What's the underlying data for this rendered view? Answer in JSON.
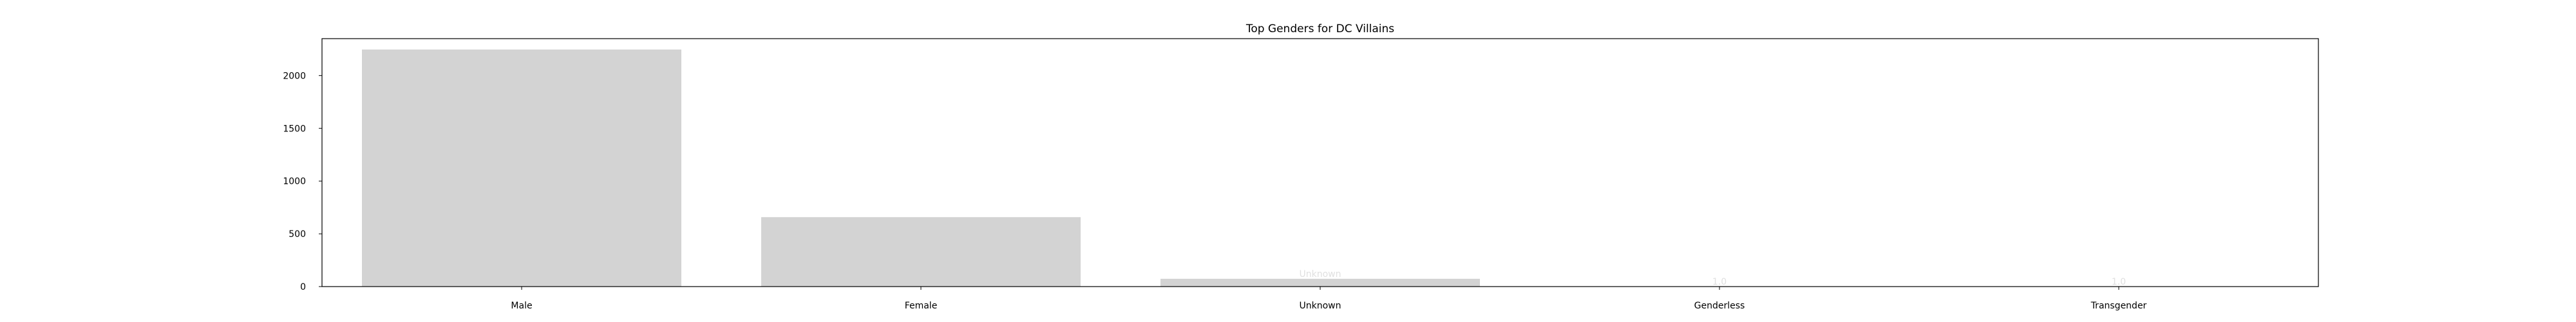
{
  "chart_data": {
    "type": "bar",
    "title": "Top Genders for DC Villains",
    "categories": [
      "Male",
      "Female",
      "Unknown",
      "Genderless",
      "Transgender"
    ],
    "values": [
      2247,
      658,
      74,
      1,
      1
    ],
    "data_labels": [
      "",
      "",
      "Unknown",
      "1.0",
      "1.0"
    ],
    "xlabel": "",
    "ylabel": "",
    "ylim": [
      0,
      2350
    ],
    "yticks": [
      0,
      500,
      1000,
      1500,
      2000
    ],
    "bar_color": "#d3d3d3",
    "grid": false,
    "legend": "none"
  }
}
